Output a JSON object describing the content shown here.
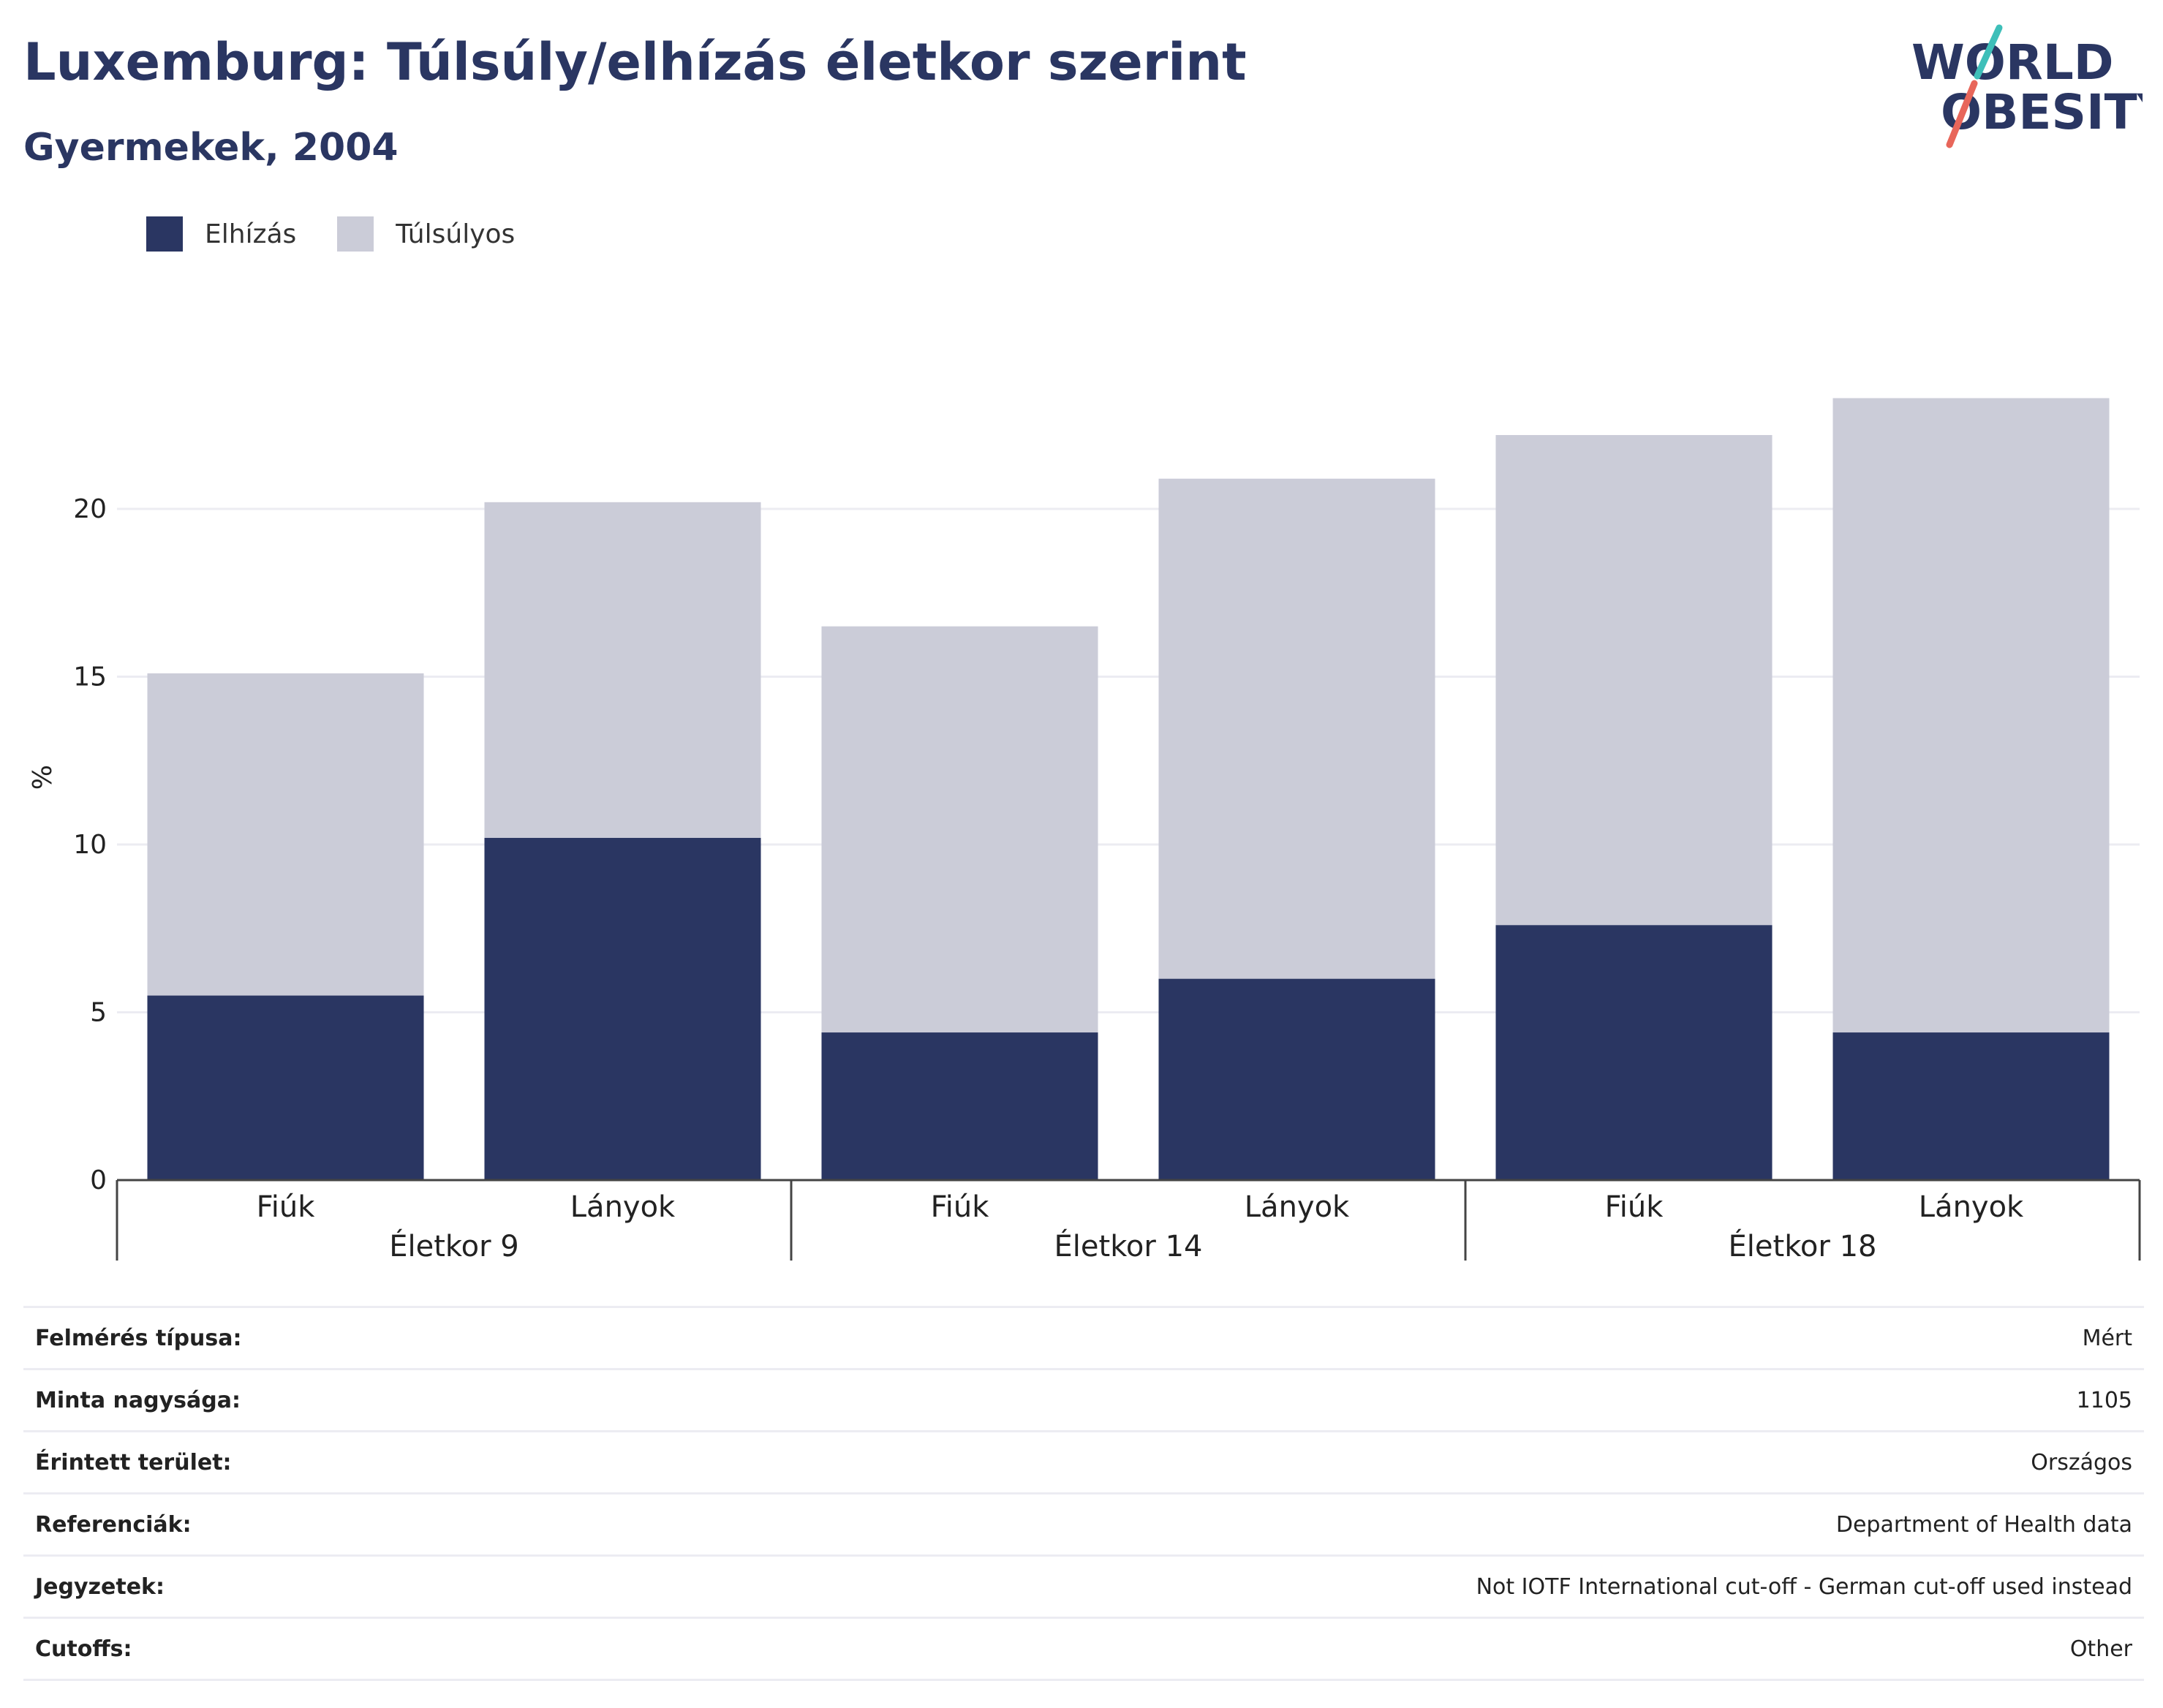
{
  "title": "Luxemburg: Túlsúly/elhízás életkor szerint",
  "subtitle": "Gyermekek, 2004",
  "logo": {
    "line1": "WORLD",
    "line2": "OBESITY"
  },
  "colors": {
    "obesity": "#2a3662",
    "overweight": "#cbccd8",
    "title": "#2a3662",
    "logo_teal": "#3ebfb9",
    "logo_red": "#e8665a"
  },
  "chart_data": {
    "type": "bar",
    "stacked": true,
    "ylabel": "%",
    "ylim": [
      0,
      24
    ],
    "yticks": [
      0,
      5,
      10,
      15,
      20
    ],
    "grid": true,
    "legend_position": "top-left",
    "groups": [
      "Életkor 9",
      "Életkor 14",
      "Életkor 18"
    ],
    "categories": [
      "Fiúk",
      "Lányok",
      "Fiúk",
      "Lányok",
      "Fiúk",
      "Lányok"
    ],
    "series": [
      {
        "name": "Elhízás",
        "values": [
          5.5,
          10.2,
          4.4,
          6.0,
          7.6,
          4.4
        ]
      },
      {
        "name": "Túlsúlyos",
        "values": [
          9.6,
          10.0,
          12.1,
          14.9,
          14.6,
          18.9
        ]
      }
    ]
  },
  "info": [
    {
      "label": "Felmérés típusa:",
      "value": "Mért"
    },
    {
      "label": "Minta nagysága:",
      "value": "1105"
    },
    {
      "label": "Érintett terület:",
      "value": "Országos"
    },
    {
      "label": "Referenciák:",
      "value": "Department of Health data"
    },
    {
      "label": "Jegyzetek:",
      "value": "Not IOTF International cut-off - German cut-off used instead"
    },
    {
      "label": "Cutoffs:",
      "value": "Other"
    }
  ]
}
